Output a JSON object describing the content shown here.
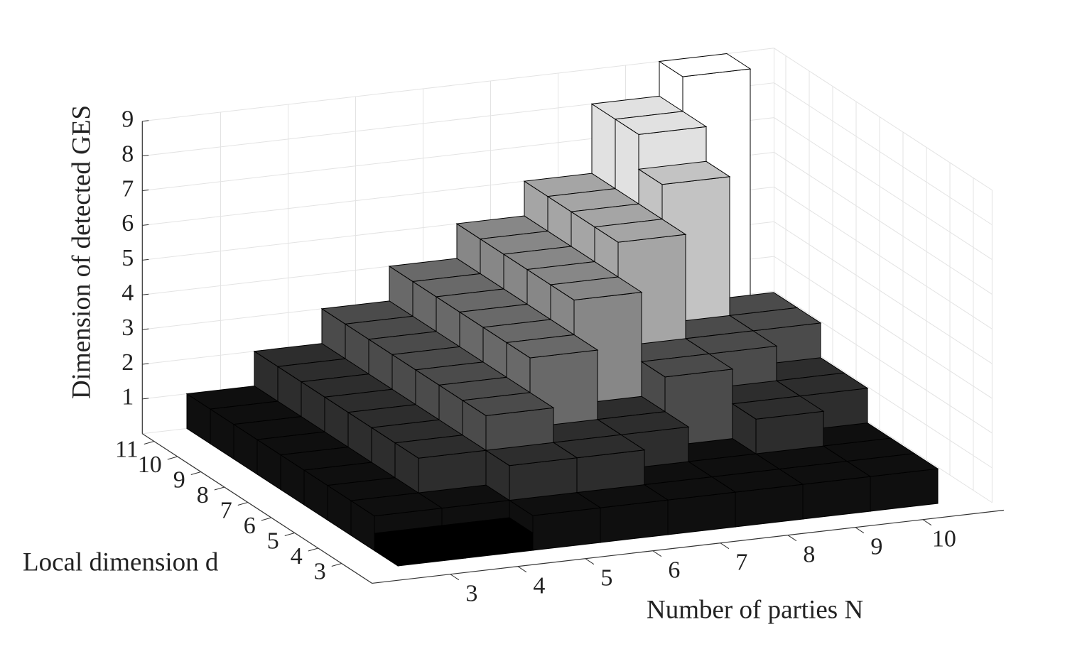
{
  "chart_data": {
    "type": "bar3d",
    "xlabel": "Number of parties N",
    "ylabel": "Local dimension d",
    "zlabel": "Dimension of detected GES",
    "x": [
      3,
      4,
      5,
      6,
      7,
      8,
      9,
      10
    ],
    "y": [
      3,
      4,
      5,
      6,
      7,
      8,
      9,
      10,
      11
    ],
    "values": [
      [
        0.5,
        0.5,
        1,
        1,
        1,
        1,
        1,
        1
      ],
      [
        1,
        1,
        2,
        2,
        1,
        1,
        1,
        1
      ],
      [
        1,
        2,
        3,
        2,
        2,
        1,
        2,
        1
      ],
      [
        1,
        2,
        3,
        4,
        2,
        3,
        2,
        2
      ],
      [
        1,
        2,
        3,
        4,
        5,
        3,
        3,
        2
      ],
      [
        1,
        2,
        3,
        4,
        5,
        6,
        3,
        3
      ],
      [
        1,
        2,
        3,
        4,
        5,
        6,
        7,
        3
      ],
      [
        1,
        2,
        3,
        4,
        5,
        6,
        8,
        2
      ],
      [
        1,
        2,
        3,
        4,
        5,
        6,
        8,
        9
      ]
    ],
    "zlim": [
      0,
      9
    ],
    "zticks": [
      1,
      2,
      3,
      4,
      5,
      6,
      7,
      8,
      9
    ],
    "grid": true,
    "colormap": [
      "#000000",
      "#ffffff"
    ]
  }
}
